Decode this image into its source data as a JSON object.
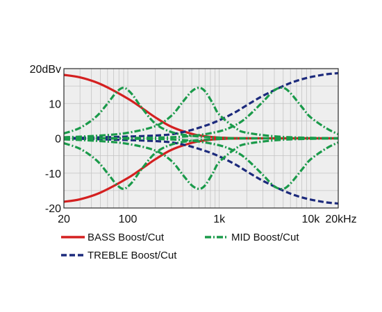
{
  "chart_data": {
    "type": "line",
    "title": "",
    "xlabel": "",
    "ylabel": "",
    "x_scale": "log",
    "xlim": [
      20,
      20000
    ],
    "ylim": [
      -20,
      20
    ],
    "grid": true,
    "background": "#eeeeee",
    "x_ticks": [
      {
        "value": 20,
        "label": "20"
      },
      {
        "value": 100,
        "label": "100"
      },
      {
        "value": 1000,
        "label": "1k"
      },
      {
        "value": 10000,
        "label": "10k"
      },
      {
        "value": 20000,
        "label": "20kHz"
      }
    ],
    "y_ticks": [
      {
        "value": 20,
        "label": "20dBv"
      },
      {
        "value": 10,
        "label": "10"
      },
      {
        "value": 0,
        "label": "0"
      },
      {
        "value": -10,
        "label": "-10"
      },
      {
        "value": -20,
        "label": "-20"
      }
    ],
    "legend": {
      "placement": "bottom",
      "entries": [
        {
          "name": "BASS Boost/Cut",
          "color": "#d42020",
          "style": "solid"
        },
        {
          "name": "MID Boost/Cut",
          "color": "#1a9a4a",
          "style": "dashdot"
        },
        {
          "name": "TREBLE Boost/Cut",
          "color": "#1c2a7c",
          "style": "dashed"
        }
      ]
    },
    "series": [
      {
        "group": "BASS Boost/Cut",
        "color": "#d42020",
        "style": "solid",
        "x": [
          20,
          30,
          50,
          100,
          150,
          200,
          300,
          500,
          700,
          1000,
          2000,
          5000,
          20000
        ],
        "y": [
          18.2,
          17.5,
          15.6,
          11.4,
          8.3,
          6.0,
          3.3,
          1.3,
          0.6,
          0.2,
          0,
          0,
          0
        ]
      },
      {
        "group": "BASS Boost/Cut",
        "color": "#d42020",
        "style": "solid",
        "x": [
          20,
          30,
          50,
          100,
          150,
          200,
          300,
          500,
          700,
          1000,
          2000,
          5000,
          20000
        ],
        "y": [
          -18.2,
          -17.5,
          -15.6,
          -11.4,
          -8.3,
          -6.0,
          -3.3,
          -1.3,
          -0.6,
          -0.2,
          0,
          0,
          0
        ]
      },
      {
        "group": "MID Boost/Cut",
        "color": "#1a9a4a",
        "style": "dashdot",
        "x": [
          20,
          30,
          45,
          60,
          75,
          90,
          110,
          140,
          200,
          300,
          500,
          1000,
          2000,
          20000
        ],
        "y": [
          1.4,
          3.0,
          6.2,
          10.0,
          13.2,
          14.5,
          12.8,
          9.0,
          4.2,
          1.8,
          0.7,
          0.2,
          0,
          0
        ]
      },
      {
        "group": "MID Boost/Cut",
        "color": "#1a9a4a",
        "style": "dashdot",
        "x": [
          20,
          30,
          45,
          60,
          75,
          90,
          110,
          140,
          200,
          300,
          500,
          1000,
          2000,
          20000
        ],
        "y": [
          -1.4,
          -3.0,
          -6.2,
          -10.0,
          -13.2,
          -14.5,
          -12.8,
          -9.0,
          -4.2,
          -1.8,
          -0.7,
          -0.2,
          0,
          0
        ]
      },
      {
        "group": "MID Boost/Cut",
        "color": "#1a9a4a",
        "style": "dashdot",
        "x": [
          20,
          50,
          100,
          200,
          300,
          400,
          500,
          600,
          700,
          850,
          1000,
          1500,
          2000,
          5000,
          20000
        ],
        "y": [
          0.3,
          0.8,
          1.6,
          3.5,
          6.5,
          10.5,
          13.5,
          14.5,
          13.5,
          10.0,
          6.8,
          3.0,
          1.6,
          0.4,
          0
        ]
      },
      {
        "group": "MID Boost/Cut",
        "color": "#1a9a4a",
        "style": "dashdot",
        "x": [
          20,
          50,
          100,
          200,
          300,
          400,
          500,
          600,
          700,
          850,
          1000,
          1500,
          2000,
          5000,
          20000
        ],
        "y": [
          -0.3,
          -0.8,
          -1.6,
          -3.5,
          -6.5,
          -10.5,
          -13.5,
          -14.5,
          -13.5,
          -10.0,
          -6.8,
          -3.0,
          -1.6,
          -0.4,
          0
        ]
      },
      {
        "group": "MID Boost/Cut",
        "color": "#1a9a4a",
        "style": "dashdot",
        "x": [
          20,
          200,
          500,
          1000,
          1500,
          2000,
          3000,
          4000,
          5000,
          6000,
          8000,
          10000,
          15000,
          20000
        ],
        "y": [
          0,
          0.2,
          0.7,
          2.0,
          3.8,
          6.0,
          10.5,
          13.8,
          14.5,
          13.0,
          9.0,
          6.0,
          2.8,
          1.2
        ]
      },
      {
        "group": "MID Boost/Cut",
        "color": "#1a9a4a",
        "style": "dashdot",
        "x": [
          20,
          200,
          500,
          1000,
          1500,
          2000,
          3000,
          4000,
          5000,
          6000,
          8000,
          10000,
          15000,
          20000
        ],
        "y": [
          0,
          -0.2,
          -0.7,
          -2.0,
          -3.8,
          -6.0,
          -10.5,
          -13.8,
          -14.5,
          -13.0,
          -9.0,
          -6.0,
          -2.8,
          -1.2
        ]
      },
      {
        "group": "TREBLE Boost/Cut",
        "color": "#1c2a7c",
        "style": "dashed",
        "x": [
          20,
          200,
          400,
          700,
          1000,
          1500,
          2000,
          3000,
          5000,
          7000,
          10000,
          15000,
          20000
        ],
        "y": [
          0,
          0.8,
          1.8,
          3.6,
          5.2,
          7.5,
          9.5,
          12.2,
          15.0,
          16.5,
          17.6,
          18.4,
          18.7
        ]
      },
      {
        "group": "TREBLE Boost/Cut",
        "color": "#1c2a7c",
        "style": "dashed",
        "x": [
          20,
          200,
          400,
          700,
          1000,
          1500,
          2000,
          3000,
          5000,
          7000,
          10000,
          15000,
          20000
        ],
        "y": [
          0,
          -0.8,
          -1.8,
          -3.6,
          -5.2,
          -7.5,
          -9.5,
          -12.2,
          -15.0,
          -16.5,
          -17.6,
          -18.4,
          -18.7
        ]
      }
    ]
  }
}
